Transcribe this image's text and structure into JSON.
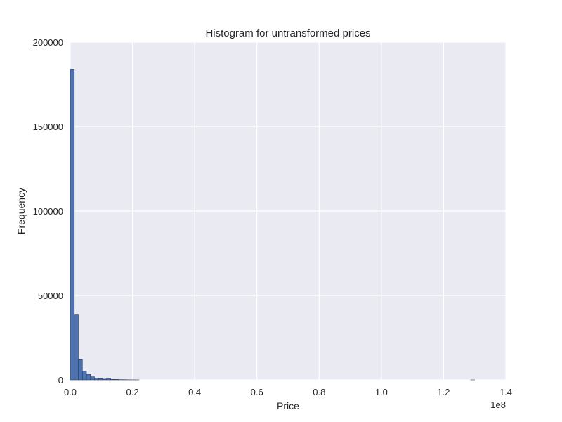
{
  "chart_data": {
    "type": "bar",
    "title": "Histogram for untransformed prices",
    "xlabel": "Price",
    "ylabel": "Frequency",
    "x_offset_label": "1e8",
    "xlim": [
      0,
      1.4
    ],
    "ylim": [
      0,
      200000
    ],
    "x_ticks": [
      "0.0",
      "0.2",
      "0.4",
      "0.6",
      "0.8",
      "1.0",
      "1.2",
      "1.4"
    ],
    "y_ticks": [
      "0",
      "50000",
      "100000",
      "150000",
      "200000"
    ],
    "grid": true,
    "bin_width": 0.013,
    "bins": [
      {
        "x": 0.0,
        "value": 184000
      },
      {
        "x": 0.013,
        "value": 38500
      },
      {
        "x": 0.026,
        "value": 12000
      },
      {
        "x": 0.039,
        "value": 5200
      },
      {
        "x": 0.052,
        "value": 3200
      },
      {
        "x": 0.065,
        "value": 1800
      },
      {
        "x": 0.078,
        "value": 1100
      },
      {
        "x": 0.091,
        "value": 700
      },
      {
        "x": 0.104,
        "value": 450
      },
      {
        "x": 0.117,
        "value": 900
      },
      {
        "x": 0.13,
        "value": 300
      },
      {
        "x": 0.143,
        "value": 250
      },
      {
        "x": 0.156,
        "value": 150
      },
      {
        "x": 0.169,
        "value": 120
      },
      {
        "x": 0.182,
        "value": 60
      },
      {
        "x": 0.195,
        "value": 40
      },
      {
        "x": 0.208,
        "value": 30
      },
      {
        "x": 1.287,
        "value": 5
      }
    ],
    "colors": {
      "bar": "#4C72B0",
      "bar_edge": "#2a3f66",
      "background": "#EAEAF2",
      "grid": "#ffffff"
    }
  }
}
